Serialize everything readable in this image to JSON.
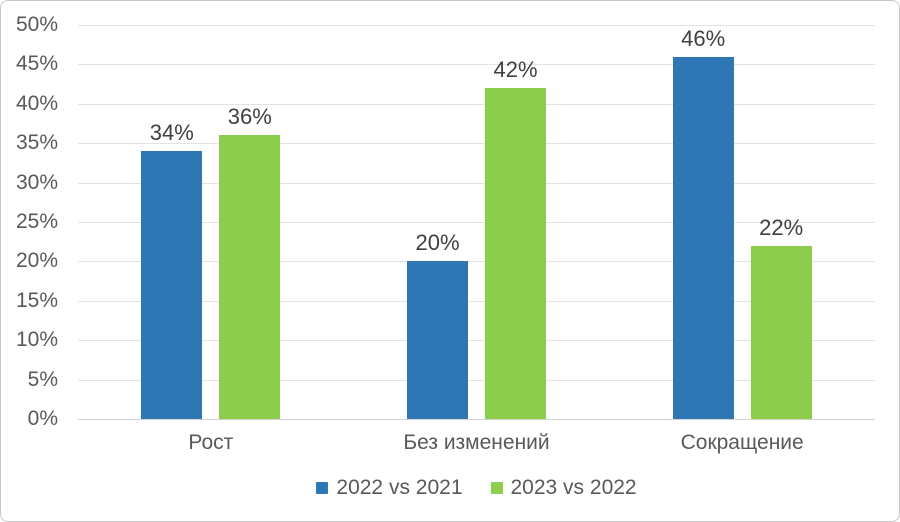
{
  "chart_data": {
    "type": "bar",
    "categories": [
      "Рост",
      "Без изменений",
      "Сокращение"
    ],
    "series": [
      {
        "name": "2022 vs 2021",
        "color": "#2F76B5",
        "values": [
          34,
          20,
          46
        ]
      },
      {
        "name": "2023 vs 2022",
        "color": "#8CCE4B",
        "values": [
          36,
          42,
          22
        ]
      }
    ],
    "data_labels": [
      [
        "34%",
        "20%",
        "46%"
      ],
      [
        "36%",
        "42%",
        "22%"
      ]
    ],
    "yticks": [
      "0%",
      "5%",
      "10%",
      "15%",
      "20%",
      "25%",
      "30%",
      "35%",
      "40%",
      "45%",
      "50%"
    ],
    "ylim": [
      0,
      50
    ],
    "ytick_step": 5,
    "grid": true,
    "legend_position": "bottom",
    "title": "",
    "xlabel": "",
    "ylabel": ""
  },
  "colors": {
    "axis_text": "#595959",
    "data_label_text": "#404040",
    "gridline": "#E3E3E3",
    "baseline": "#D2D2D2",
    "frame_border": "#C8C8C8",
    "background": "#FFFFFF",
    "series_blue": "#2F76B5",
    "series_green": "#8CCE4B"
  }
}
